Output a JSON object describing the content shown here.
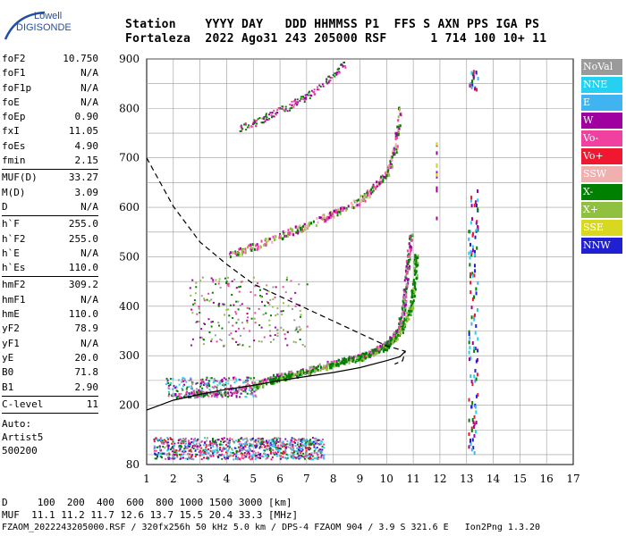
{
  "logo": {
    "line1": "Lowell",
    "line2": "DIGISONDE"
  },
  "header": {
    "line1": "Station    YYYY DAY   DDD HHMMSS P1  FFS S AXN PPS IGA PS",
    "line2": "Fortaleza  2022 Ago31 243 205000 RSF      1 714 100 10+ 11"
  },
  "params": {
    "group1": [
      [
        "foF2",
        "10.750"
      ],
      [
        "foF1",
        "N/A"
      ],
      [
        "foF1p",
        "N/A"
      ],
      [
        "foE",
        "N/A"
      ],
      [
        "foEp",
        "0.90"
      ],
      [
        "fxI",
        "11.05"
      ],
      [
        "foEs",
        "4.90"
      ],
      [
        "fmin",
        "2.15"
      ]
    ],
    "group2": [
      [
        "MUF(D)",
        "33.27"
      ],
      [
        "M(D)",
        "3.09"
      ],
      [
        "D",
        "N/A"
      ]
    ],
    "group3": [
      [
        "h`F",
        "255.0"
      ],
      [
        "h`F2",
        "255.0"
      ],
      [
        "h`E",
        "N/A"
      ],
      [
        "h`Es",
        "110.0"
      ]
    ],
    "group4": [
      [
        "hmF2",
        "309.2"
      ],
      [
        "hmF1",
        "N/A"
      ],
      [
        "hmE",
        "110.0"
      ],
      [
        "yF2",
        "78.9"
      ],
      [
        "yF1",
        "N/A"
      ],
      [
        "yE",
        "20.0"
      ],
      [
        "B0",
        "71.8"
      ],
      [
        "B1",
        "2.90"
      ]
    ],
    "group5": [
      [
        "C-level",
        "11"
      ]
    ],
    "auto": [
      "Auto:",
      "Artist5",
      "500200"
    ]
  },
  "legend": [
    {
      "label": "NoVal",
      "color": "#9a9a9a"
    },
    {
      "label": "NNE",
      "color": "#26d0f0"
    },
    {
      "label": "E",
      "color": "#40b4f0"
    },
    {
      "label": "W",
      "color": "#a000a0"
    },
    {
      "label": "Vo-",
      "color": "#f040a0"
    },
    {
      "label": "Vo+",
      "color": "#f01830"
    },
    {
      "label": "SSW",
      "color": "#f0b0b0"
    },
    {
      "label": "X-",
      "color": "#008000"
    },
    {
      "label": "X+",
      "color": "#90c040"
    },
    {
      "label": "SSE",
      "color": "#d8d820"
    },
    {
      "label": "NNW",
      "color": "#2020d0"
    }
  ],
  "footer": {
    "line1": "D     100  200  400  600  800 1000 1500 3000 [km]",
    "line2": "MUF  11.1 11.2 11.7 12.6 13.7 15.5 20.4 33.3 [MHz]",
    "line3": "FZAOM_2022243205000.RSF / 320fx256h 50 kHz 5.0 km / DPS-4 FZAOM 904 / 3.9 S 321.6 E   Ion2Png 1.3.20"
  },
  "chart_data": {
    "type": "scatter",
    "x_range": [
      1,
      17
    ],
    "y_range": [
      80,
      900
    ],
    "x_ticks": [
      1,
      2,
      3,
      4,
      5,
      6,
      7,
      8,
      9,
      10,
      11,
      12,
      13,
      14,
      15,
      16,
      17
    ],
    "y_ticks": [
      80,
      200,
      300,
      400,
      500,
      600,
      700,
      800,
      900
    ],
    "grid": true,
    "trace_F2_oblique": [
      [
        2.0,
        222
      ],
      [
        3.0,
        224
      ],
      [
        4.0,
        228
      ],
      [
        5.0,
        244
      ],
      [
        6.0,
        262
      ],
      [
        7.0,
        272
      ],
      [
        8.0,
        288
      ],
      [
        9.0,
        300
      ],
      [
        9.5,
        310
      ],
      [
        10.0,
        325
      ],
      [
        10.4,
        350
      ],
      [
        10.6,
        390
      ],
      [
        10.7,
        440
      ],
      [
        10.8,
        500
      ],
      [
        10.9,
        545
      ]
    ],
    "trace_F2_X": [
      [
        5.0,
        238
      ],
      [
        6.0,
        256
      ],
      [
        7.0,
        268
      ],
      [
        8.0,
        284
      ],
      [
        9.0,
        298
      ],
      [
        10.0,
        320
      ],
      [
        10.5,
        350
      ],
      [
        10.9,
        400
      ],
      [
        11.05,
        460
      ],
      [
        11.1,
        505
      ]
    ],
    "trace_second_hop": [
      [
        4.0,
        505
      ],
      [
        5.0,
        522
      ],
      [
        6.0,
        545
      ],
      [
        7.0,
        565
      ],
      [
        8.0,
        590
      ],
      [
        9.0,
        615
      ],
      [
        9.5,
        640
      ],
      [
        10.0,
        670
      ],
      [
        10.3,
        720
      ],
      [
        10.5,
        800
      ]
    ],
    "trace_third_hop": [
      [
        4.5,
        760
      ],
      [
        5.5,
        785
      ],
      [
        6.5,
        810
      ],
      [
        7.5,
        845
      ],
      [
        8.5,
        895
      ]
    ],
    "es_layer": [
      [
        1.2,
        110
      ],
      [
        2.0,
        112
      ],
      [
        3.0,
        114
      ],
      [
        4.0,
        110
      ],
      [
        5.0,
        112
      ],
      [
        6.0,
        110
      ],
      [
        7.0,
        110
      ],
      [
        7.5,
        110
      ]
    ],
    "profile_line": [
      [
        1.0,
        190
      ],
      [
        2.0,
        210
      ],
      [
        3.0,
        222
      ],
      [
        4.0,
        232
      ],
      [
        5.0,
        240
      ],
      [
        6.0,
        250
      ],
      [
        7.0,
        258
      ],
      [
        8.0,
        266
      ],
      [
        9.0,
        276
      ],
      [
        10.0,
        290
      ],
      [
        10.5,
        298
      ],
      [
        10.7,
        309
      ]
    ],
    "muf_curve": [
      [
        1.0,
        700
      ],
      [
        2.0,
        602
      ],
      [
        3.0,
        530
      ],
      [
        4.0,
        485
      ],
      [
        5.0,
        445
      ],
      [
        6.0,
        420
      ],
      [
        7.0,
        395
      ],
      [
        8.0,
        370
      ],
      [
        9.0,
        345
      ],
      [
        10.0,
        320
      ],
      [
        10.7,
        309
      ],
      [
        10.6,
        290
      ],
      [
        10.3,
        283
      ]
    ]
  }
}
